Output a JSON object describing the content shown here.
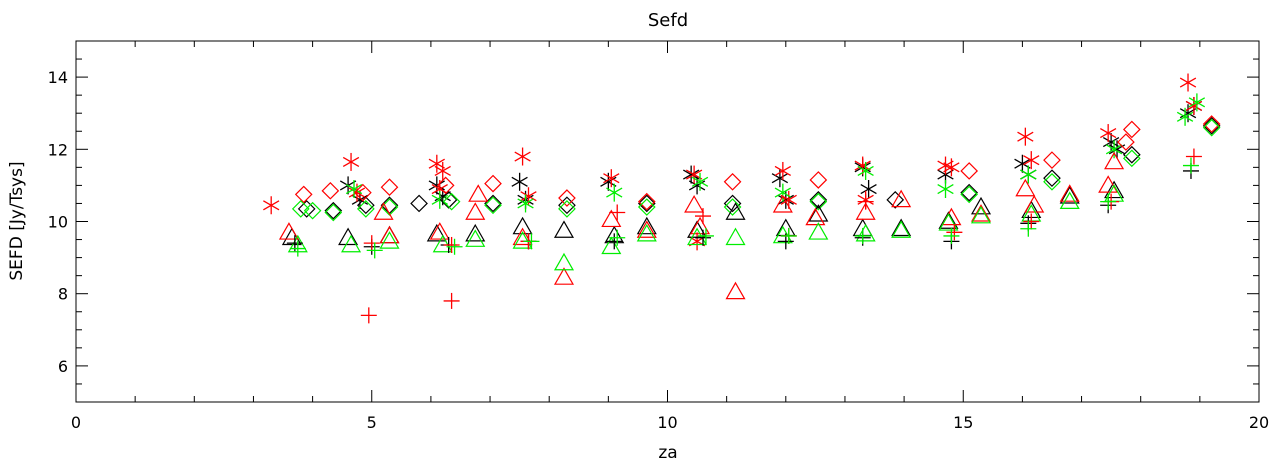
{
  "chart_data": {
    "type": "scatter",
    "title": "Sefd",
    "xlabel": "za",
    "ylabel": "SEFD [Jy/Tsys]",
    "xlim": [
      0,
      20
    ],
    "ylim": [
      5,
      15
    ],
    "x_ticks": [
      0,
      5,
      10,
      15,
      20
    ],
    "x_tick_labels": [
      "0",
      "5",
      "10",
      "15",
      "20"
    ],
    "y_ticks": [
      6,
      8,
      10,
      12,
      14
    ],
    "y_tick_labels": [
      "6",
      "8",
      "10",
      "12",
      "14"
    ],
    "grid": false,
    "legend": "none",
    "series": [
      {
        "color": "#000000",
        "marker": "asterisk",
        "points": [
          [
            4.6,
            11.0
          ],
          [
            4.8,
            10.6
          ],
          [
            6.1,
            11.0
          ],
          [
            6.2,
            10.7
          ],
          [
            7.5,
            11.1
          ],
          [
            7.6,
            10.6
          ],
          [
            9.0,
            11.1
          ],
          [
            10.4,
            11.3
          ],
          [
            10.5,
            11.0
          ],
          [
            11.9,
            11.2
          ],
          [
            12.0,
            10.6
          ],
          [
            13.3,
            11.5
          ],
          [
            13.4,
            10.9
          ],
          [
            14.7,
            11.3
          ],
          [
            16.0,
            11.6
          ],
          [
            16.1,
            11.3
          ],
          [
            17.5,
            12.2
          ],
          [
            17.6,
            12.0
          ],
          [
            18.8,
            13.0
          ],
          [
            18.9,
            13.2
          ]
        ]
      },
      {
        "color": "#ff0000",
        "marker": "asterisk",
        "points": [
          [
            3.3,
            10.45
          ],
          [
            4.65,
            11.65
          ],
          [
            4.75,
            10.8
          ],
          [
            6.1,
            11.6
          ],
          [
            6.2,
            11.4
          ],
          [
            6.15,
            10.9
          ],
          [
            7.55,
            11.8
          ],
          [
            7.65,
            10.7
          ],
          [
            9.05,
            11.2
          ],
          [
            10.45,
            11.3
          ],
          [
            10.5,
            9.45
          ],
          [
            11.95,
            11.4
          ],
          [
            12.05,
            10.6
          ],
          [
            13.3,
            11.55
          ],
          [
            13.35,
            10.6
          ],
          [
            14.7,
            11.55
          ],
          [
            14.8,
            11.5
          ],
          [
            16.05,
            12.35
          ],
          [
            16.15,
            11.7
          ],
          [
            17.45,
            12.45
          ],
          [
            18.8,
            13.85
          ],
          [
            18.9,
            13.2
          ]
        ]
      },
      {
        "color": "#00ee00",
        "marker": "asterisk",
        "points": [
          [
            4.7,
            10.9
          ],
          [
            6.15,
            10.6
          ],
          [
            7.6,
            10.5
          ],
          [
            9.1,
            10.8
          ],
          [
            10.55,
            11.1
          ],
          [
            11.95,
            10.8
          ],
          [
            13.35,
            11.4
          ],
          [
            14.7,
            10.9
          ],
          [
            16.1,
            11.3
          ],
          [
            17.55,
            12.0
          ],
          [
            18.75,
            12.9
          ],
          [
            18.95,
            13.3
          ]
        ]
      },
      {
        "color": "#000000",
        "marker": "diamond",
        "points": [
          [
            3.9,
            10.35
          ],
          [
            4.35,
            10.3
          ],
          [
            4.9,
            10.45
          ],
          [
            5.3,
            10.45
          ],
          [
            5.8,
            10.5
          ],
          [
            6.3,
            10.6
          ],
          [
            7.05,
            10.5
          ],
          [
            8.3,
            10.45
          ],
          [
            9.65,
            10.5
          ],
          [
            11.1,
            10.5
          ],
          [
            12.55,
            10.6
          ],
          [
            13.85,
            10.6
          ],
          [
            15.1,
            10.8
          ],
          [
            16.5,
            11.2
          ],
          [
            17.85,
            11.85
          ],
          [
            19.2,
            12.65
          ]
        ]
      },
      {
        "color": "#ff0000",
        "marker": "diamond",
        "points": [
          [
            3.85,
            10.75
          ],
          [
            4.3,
            10.85
          ],
          [
            4.85,
            10.8
          ],
          [
            5.3,
            10.95
          ],
          [
            6.25,
            11.0
          ],
          [
            7.05,
            11.05
          ],
          [
            8.3,
            10.65
          ],
          [
            9.65,
            10.55
          ],
          [
            11.1,
            11.1
          ],
          [
            12.55,
            11.15
          ],
          [
            15.1,
            11.4
          ],
          [
            16.5,
            11.7
          ],
          [
            17.85,
            12.55
          ],
          [
            17.75,
            12.2
          ],
          [
            19.2,
            12.7
          ]
        ]
      },
      {
        "color": "#00ee00",
        "marker": "diamond",
        "points": [
          [
            3.8,
            10.35
          ],
          [
            4.0,
            10.3
          ],
          [
            4.35,
            10.25
          ],
          [
            4.9,
            10.35
          ],
          [
            5.3,
            10.4
          ],
          [
            6.35,
            10.55
          ],
          [
            7.05,
            10.45
          ],
          [
            8.3,
            10.35
          ],
          [
            9.65,
            10.4
          ],
          [
            11.1,
            10.4
          ],
          [
            12.55,
            10.55
          ],
          [
            15.1,
            10.75
          ],
          [
            16.5,
            11.1
          ],
          [
            17.85,
            11.75
          ],
          [
            19.2,
            12.6
          ]
        ]
      },
      {
        "color": "#000000",
        "marker": "triangle",
        "points": [
          [
            3.65,
            9.55
          ],
          [
            4.6,
            9.55
          ],
          [
            5.3,
            9.6
          ],
          [
            6.1,
            9.65
          ],
          [
            6.75,
            9.65
          ],
          [
            7.55,
            9.85
          ],
          [
            8.25,
            9.75
          ],
          [
            9.1,
            9.6
          ],
          [
            9.65,
            9.85
          ],
          [
            10.5,
            9.75
          ],
          [
            11.15,
            10.25
          ],
          [
            12.0,
            9.8
          ],
          [
            12.55,
            10.2
          ],
          [
            13.3,
            9.8
          ],
          [
            13.95,
            9.8
          ],
          [
            14.75,
            10.0
          ],
          [
            15.3,
            10.4
          ],
          [
            16.15,
            10.3
          ],
          [
            16.8,
            10.7
          ],
          [
            17.55,
            10.85
          ]
        ]
      },
      {
        "color": "#ff0000",
        "marker": "triangle",
        "points": [
          [
            3.6,
            9.7
          ],
          [
            5.2,
            10.25
          ],
          [
            5.3,
            9.6
          ],
          [
            6.15,
            9.7
          ],
          [
            6.8,
            10.75
          ],
          [
            6.75,
            10.25
          ],
          [
            7.55,
            9.55
          ],
          [
            8.25,
            8.45
          ],
          [
            9.05,
            10.05
          ],
          [
            9.65,
            9.75
          ],
          [
            10.45,
            10.45
          ],
          [
            10.55,
            9.85
          ],
          [
            11.15,
            8.05
          ],
          [
            11.95,
            10.45
          ],
          [
            12.5,
            10.1
          ],
          [
            13.35,
            10.25
          ],
          [
            13.95,
            10.6
          ],
          [
            14.8,
            10.1
          ],
          [
            15.3,
            10.2
          ],
          [
            16.05,
            10.9
          ],
          [
            16.2,
            10.45
          ],
          [
            16.8,
            10.75
          ],
          [
            17.55,
            11.65
          ],
          [
            17.45,
            11.0
          ]
        ]
      },
      {
        "color": "#00ee00",
        "marker": "triangle",
        "points": [
          [
            3.75,
            9.35
          ],
          [
            4.65,
            9.35
          ],
          [
            5.3,
            9.45
          ],
          [
            6.2,
            9.35
          ],
          [
            6.75,
            9.5
          ],
          [
            7.55,
            9.45
          ],
          [
            8.25,
            8.85
          ],
          [
            9.05,
            9.3
          ],
          [
            9.65,
            9.65
          ],
          [
            10.5,
            9.55
          ],
          [
            11.15,
            9.55
          ],
          [
            11.95,
            9.6
          ],
          [
            12.55,
            9.7
          ],
          [
            13.35,
            9.65
          ],
          [
            13.95,
            9.75
          ],
          [
            14.75,
            9.95
          ],
          [
            15.3,
            10.15
          ],
          [
            16.15,
            10.2
          ],
          [
            16.8,
            10.55
          ],
          [
            17.55,
            10.75
          ]
        ]
      },
      {
        "color": "#000000",
        "marker": "plus",
        "points": [
          [
            3.7,
            9.4
          ],
          [
            5.0,
            9.3
          ],
          [
            6.3,
            9.35
          ],
          [
            7.65,
            9.45
          ],
          [
            9.1,
            9.45
          ],
          [
            10.6,
            9.55
          ],
          [
            12.0,
            9.45
          ],
          [
            13.3,
            9.55
          ],
          [
            14.8,
            9.45
          ],
          [
            16.1,
            9.95
          ],
          [
            17.45,
            10.45
          ],
          [
            18.85,
            11.4
          ]
        ]
      },
      {
        "color": "#ff0000",
        "marker": "plus",
        "points": [
          [
            4.95,
            7.4
          ],
          [
            5.0,
            9.4
          ],
          [
            6.35,
            7.8
          ],
          [
            6.35,
            9.35
          ],
          [
            7.65,
            9.45
          ],
          [
            9.15,
            10.25
          ],
          [
            10.6,
            10.15
          ],
          [
            12.05,
            9.6
          ],
          [
            13.35,
            10.55
          ],
          [
            14.85,
            9.7
          ],
          [
            16.15,
            10.0
          ],
          [
            17.5,
            10.55
          ],
          [
            18.9,
            11.8
          ]
        ]
      },
      {
        "color": "#00ee00",
        "marker": "plus",
        "points": [
          [
            3.75,
            9.25
          ],
          [
            5.05,
            9.2
          ],
          [
            6.4,
            9.3
          ],
          [
            7.7,
            9.45
          ],
          [
            9.15,
            9.55
          ],
          [
            10.65,
            9.6
          ],
          [
            12.05,
            9.6
          ],
          [
            13.3,
            9.6
          ],
          [
            14.8,
            9.6
          ],
          [
            16.1,
            9.8
          ],
          [
            17.45,
            10.55
          ],
          [
            18.85,
            11.55
          ]
        ]
      }
    ]
  }
}
